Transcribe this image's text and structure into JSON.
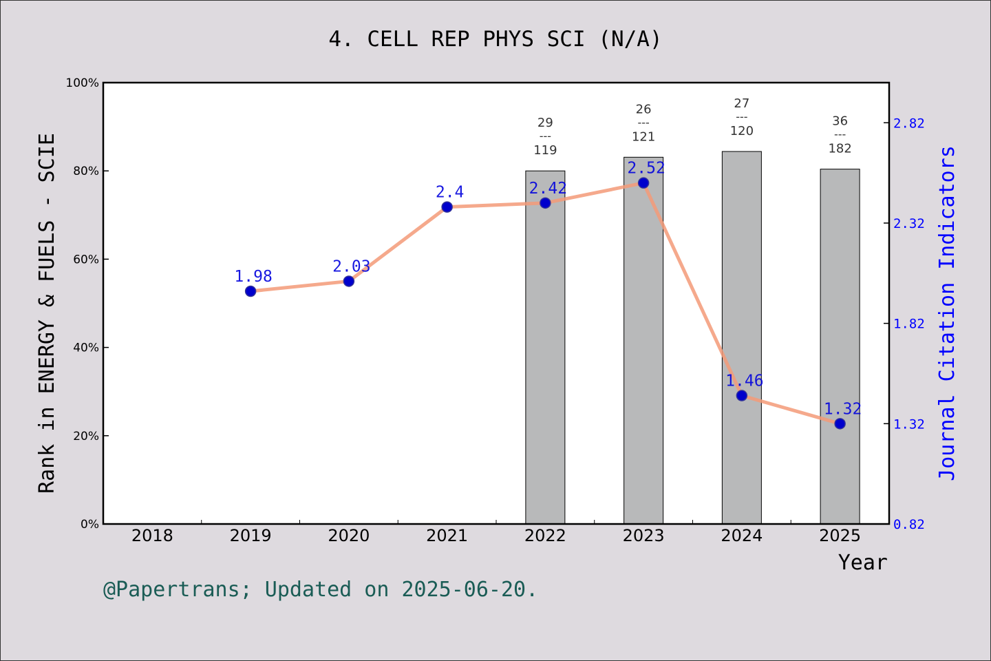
{
  "chart_data": {
    "type": "bar+line",
    "title": "4. CELL REP PHYS SCI (N/A)",
    "xlabel": "Year",
    "ylabel_left": "Rank in ENERGY & FUELS - SCIE",
    "ylabel_right": "Journal Citation Indicators",
    "categories": [
      "2018",
      "2019",
      "2020",
      "2021",
      "2022",
      "2023",
      "2024",
      "2025"
    ],
    "left_axis": {
      "ylim": [
        0,
        100
      ],
      "ticks": [
        0,
        20,
        40,
        60,
        80,
        100
      ],
      "tick_labels": [
        "0%",
        "20%",
        "40%",
        "60%",
        "80%",
        "100%"
      ]
    },
    "right_axis": {
      "ylim": [
        0.82,
        3.02
      ],
      "ticks": [
        0.82,
        1.32,
        1.82,
        2.32,
        2.82
      ],
      "tick_labels": [
        "0.82",
        "1.32",
        "1.82",
        "2.32",
        "2.82"
      ]
    },
    "bars": [
      {
        "year": "2022",
        "value": 80.0,
        "rank": "29",
        "total": "119",
        "sep": "---"
      },
      {
        "year": "2023",
        "value": 83.1,
        "rank": "26",
        "total": "121",
        "sep": "---"
      },
      {
        "year": "2024",
        "value": 84.4,
        "rank": "27",
        "total": "120",
        "sep": "---"
      },
      {
        "year": "2025",
        "value": 80.4,
        "rank": "36",
        "total": "182",
        "sep": "---"
      }
    ],
    "jci_line": [
      {
        "year": "2019",
        "value": 1.98,
        "label": "1.98"
      },
      {
        "year": "2020",
        "value": 2.03,
        "label": "2.03"
      },
      {
        "year": "2021",
        "value": 2.4,
        "label": "2.4"
      },
      {
        "year": "2022",
        "value": 2.42,
        "label": "2.42"
      },
      {
        "year": "2023",
        "value": 2.52,
        "label": "2.52"
      },
      {
        "year": "2024",
        "value": 1.46,
        "label": "1.46"
      },
      {
        "year": "2025",
        "value": 1.32,
        "label": "1.32"
      }
    ],
    "colors": {
      "bar_fill": "#b8b9ba",
      "line": "#f39a78",
      "marker": "#0000cc",
      "jci_label": "#0000dd",
      "right_axis": "#0000ff",
      "footer": "#1a5c55",
      "background": "#dedadf"
    }
  },
  "footer": "@Papertrans; Updated on 2025-06-20."
}
